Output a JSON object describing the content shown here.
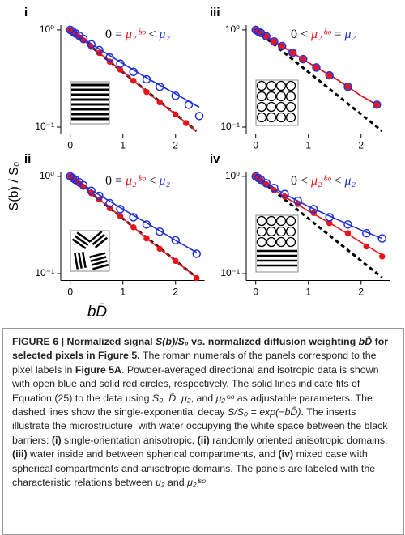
{
  "chart_data": [
    {
      "type": "scatter",
      "panel_label": "i",
      "log_y": true,
      "annotation": [
        {
          "text": "0 = ",
          "color": "#000000"
        },
        {
          "text": "μ₂ⁱˢᵒ",
          "color": "#e8141b"
        },
        {
          "text": " < ",
          "color": "#000000"
        },
        {
          "text": "μ₂",
          "color": "#1f2fd6"
        }
      ],
      "xlim": [
        -0.18,
        2.55
      ],
      "ylim": [
        0.085,
        1.12
      ],
      "xticks": [
        0,
        1,
        2
      ],
      "yticks": [
        {
          "value": 1,
          "label": "10⁰"
        },
        {
          "value": 0.1,
          "label": "10⁻¹"
        }
      ],
      "series": [
        {
          "style": "open-circle",
          "color": "#1f2fd6",
          "x": [
            0,
            0.05,
            0.1,
            0.17,
            0.25,
            0.4,
            0.55,
            0.75,
            0.95,
            1.2,
            1.45,
            1.7,
            2.0,
            2.25,
            2.45
          ],
          "values": [
            1.0,
            0.96,
            0.92,
            0.87,
            0.81,
            0.71,
            0.62,
            0.52,
            0.45,
            0.37,
            0.31,
            0.26,
            0.21,
            0.17,
            0.13
          ]
        },
        {
          "style": "filled-circle",
          "color": "#e8141b",
          "x": [
            0,
            0.05,
            0.1,
            0.17,
            0.25,
            0.4,
            0.55,
            0.75,
            0.95,
            1.2,
            1.45,
            1.7,
            2.0,
            2.2
          ],
          "values": [
            1.0,
            0.95,
            0.9,
            0.84,
            0.78,
            0.67,
            0.58,
            0.47,
            0.39,
            0.3,
            0.23,
            0.18,
            0.135,
            0.11
          ]
        },
        {
          "style": "line",
          "color": "#1f2fd6",
          "x": [
            0,
            0.5,
            1,
            1.5,
            2,
            2.45
          ],
          "values": [
            1,
            0.66,
            0.45,
            0.31,
            0.22,
            0.16
          ]
        },
        {
          "style": "line",
          "color": "#e8141b",
          "x": [
            0,
            0.5,
            1,
            1.5,
            2,
            2.4
          ],
          "values": [
            1,
            0.61,
            0.37,
            0.22,
            0.135,
            0.091
          ]
        },
        {
          "style": "dashed",
          "color": "#000000",
          "x": [
            0,
            2.4
          ],
          "values": [
            1,
            0.091
          ]
        }
      ]
    },
    {
      "type": "scatter",
      "panel_label": "ii",
      "log_y": true,
      "annotation": [
        {
          "text": "0 = ",
          "color": "#000000"
        },
        {
          "text": "μ₂ⁱˢᵒ",
          "color": "#e8141b"
        },
        {
          "text": " < ",
          "color": "#000000"
        },
        {
          "text": "μ₂",
          "color": "#1f2fd6"
        }
      ],
      "xlim": [
        -0.18,
        2.55
      ],
      "ylim": [
        0.085,
        1.12
      ],
      "xticks": [
        0,
        1,
        2
      ],
      "yticks": [
        {
          "value": 1,
          "label": "10⁰"
        },
        {
          "value": 0.1,
          "label": "10⁻¹"
        }
      ],
      "series": [
        {
          "style": "open-circle",
          "color": "#1f2fd6",
          "x": [
            0,
            0.05,
            0.1,
            0.17,
            0.25,
            0.4,
            0.55,
            0.75,
            0.95,
            1.2,
            1.45,
            1.7,
            2.0,
            2.4
          ],
          "values": [
            1.0,
            0.96,
            0.92,
            0.87,
            0.81,
            0.71,
            0.63,
            0.53,
            0.46,
            0.38,
            0.32,
            0.27,
            0.22,
            0.16
          ]
        },
        {
          "style": "filled-circle",
          "color": "#e8141b",
          "x": [
            0,
            0.05,
            0.1,
            0.17,
            0.25,
            0.4,
            0.55,
            0.75,
            0.95,
            1.2,
            1.45,
            1.7,
            2.0,
            2.4
          ],
          "values": [
            1.0,
            0.95,
            0.9,
            0.84,
            0.78,
            0.67,
            0.58,
            0.47,
            0.39,
            0.3,
            0.23,
            0.18,
            0.135,
            0.09
          ]
        },
        {
          "style": "line",
          "color": "#1f2fd6",
          "x": [
            0,
            0.5,
            1,
            1.5,
            2,
            2.4
          ],
          "values": [
            1,
            0.67,
            0.46,
            0.32,
            0.22,
            0.165
          ]
        },
        {
          "style": "line",
          "color": "#e8141b",
          "x": [
            0,
            0.5,
            1,
            1.5,
            2,
            2.4
          ],
          "values": [
            1,
            0.61,
            0.37,
            0.22,
            0.135,
            0.091
          ]
        },
        {
          "style": "dashed",
          "color": "#000000",
          "x": [
            0,
            2.4
          ],
          "values": [
            1,
            0.091
          ]
        }
      ]
    },
    {
      "type": "scatter",
      "panel_label": "iii",
      "log_y": true,
      "annotation": [
        {
          "text": "0 < ",
          "color": "#000000"
        },
        {
          "text": "μ₂ⁱˢᵒ",
          "color": "#e8141b"
        },
        {
          "text": " = ",
          "color": "#000000"
        },
        {
          "text": "μ₂",
          "color": "#1f2fd6"
        }
      ],
      "xlim": [
        -0.18,
        2.55
      ],
      "ylim": [
        0.085,
        1.12
      ],
      "xticks": [
        0,
        1,
        2
      ],
      "yticks": [
        {
          "value": 1,
          "label": "10⁰"
        },
        {
          "value": 0.1,
          "label": "10⁻¹"
        }
      ],
      "series": [
        {
          "style": "open-circle",
          "color": "#1f2fd6",
          "x": [
            0,
            0.05,
            0.1,
            0.2,
            0.35,
            0.5,
            0.7,
            0.9,
            1.15,
            1.4,
            1.75,
            2.3
          ],
          "values": [
            1,
            0.96,
            0.93,
            0.86,
            0.76,
            0.68,
            0.58,
            0.5,
            0.41,
            0.34,
            0.26,
            0.17
          ]
        },
        {
          "style": "filled-circle",
          "color": "#e8141b",
          "x": [
            0,
            0.05,
            0.1,
            0.2,
            0.35,
            0.5,
            0.7,
            0.9,
            1.15,
            1.4,
            1.75,
            2.3
          ],
          "values": [
            1,
            0.96,
            0.93,
            0.86,
            0.76,
            0.68,
            0.58,
            0.5,
            0.41,
            0.34,
            0.26,
            0.17
          ]
        },
        {
          "style": "line",
          "color": "#1f2fd6",
          "x": [
            0,
            0.5,
            1,
            1.5,
            2,
            2.3
          ],
          "values": [
            1,
            0.68,
            0.46,
            0.32,
            0.21,
            0.17
          ]
        },
        {
          "style": "line",
          "color": "#e8141b",
          "x": [
            0,
            0.5,
            1,
            1.5,
            2,
            2.3
          ],
          "values": [
            1,
            0.68,
            0.46,
            0.32,
            0.21,
            0.17
          ]
        },
        {
          "style": "dashed",
          "color": "#000000",
          "x": [
            0,
            2.4
          ],
          "values": [
            1,
            0.091
          ]
        }
      ]
    },
    {
      "type": "scatter",
      "panel_label": "iv",
      "log_y": true,
      "annotation": [
        {
          "text": "0 < ",
          "color": "#000000"
        },
        {
          "text": "μ₂ⁱˢᵒ",
          "color": "#e8141b"
        },
        {
          "text": " < ",
          "color": "#000000"
        },
        {
          "text": "μ₂",
          "color": "#1f2fd6"
        }
      ],
      "xlim": [
        -0.18,
        2.55
      ],
      "ylim": [
        0.085,
        1.12
      ],
      "xticks": [
        0,
        1,
        2
      ],
      "yticks": [
        {
          "value": 1,
          "label": "10⁰"
        },
        {
          "value": 0.1,
          "label": "10⁻¹"
        }
      ],
      "series": [
        {
          "style": "open-circle",
          "color": "#1f2fd6",
          "x": [
            0,
            0.05,
            0.1,
            0.2,
            0.35,
            0.55,
            0.8,
            1.1,
            1.4,
            1.75,
            2.1,
            2.4
          ],
          "values": [
            1,
            0.96,
            0.92,
            0.85,
            0.76,
            0.66,
            0.56,
            0.46,
            0.38,
            0.32,
            0.26,
            0.23
          ]
        },
        {
          "style": "filled-circle",
          "color": "#e8141b",
          "x": [
            0,
            0.05,
            0.1,
            0.2,
            0.35,
            0.55,
            0.8,
            1.1,
            1.4,
            1.75,
            2.1,
            2.4
          ],
          "values": [
            1,
            0.95,
            0.91,
            0.83,
            0.72,
            0.62,
            0.52,
            0.42,
            0.33,
            0.26,
            0.19,
            0.15
          ]
        },
        {
          "style": "line",
          "color": "#1f2fd6",
          "x": [
            0,
            0.5,
            1,
            1.5,
            2,
            2.4
          ],
          "values": [
            1,
            0.68,
            0.49,
            0.37,
            0.28,
            0.23
          ]
        },
        {
          "style": "line",
          "color": "#e8141b",
          "x": [
            0,
            0.5,
            1,
            1.5,
            2,
            2.4
          ],
          "values": [
            1,
            0.64,
            0.44,
            0.31,
            0.21,
            0.155
          ]
        },
        {
          "style": "dashed",
          "color": "#000000",
          "x": [
            0,
            2.4
          ],
          "values": [
            1,
            0.091
          ]
        }
      ]
    }
  ],
  "figure": {
    "ylabel": "S(b) / S₀",
    "xlabel": "bD̄"
  },
  "caption": {
    "title": [
      {
        "text": "FIGURE 6 | Normalized signal "
      },
      {
        "text": "S(b)/S₀",
        "i": true
      },
      {
        "text": " vs. normalized diffusion weighting "
      },
      {
        "text": "bD̄",
        "i": true
      },
      {
        "text": " for selected pixels in Figure 5."
      }
    ],
    "body": [
      {
        "text": "The roman numerals of the panels correspond to the pixel labels in "
      },
      {
        "text": "Figure 5A",
        "b": true
      },
      {
        "text": ". Powder-averaged directional and isotropic data is shown with open blue and solid red circles, respectively. The solid lines indicate fits of Equation (25) to the data using "
      },
      {
        "text": "S₀, D̄, μ₂",
        "i": true
      },
      {
        "text": ", and "
      },
      {
        "text": "μ₂ⁱˢᵒ",
        "i": true
      },
      {
        "text": " as adjustable parameters. The dashed lines show the single-exponential decay "
      },
      {
        "text": "S/S₀ = exp(−bD̄)",
        "i": true
      },
      {
        "text": ". The inserts illustrate the microstructure, with water occupying the white space between the black barriers: "
      },
      {
        "text": "(i)",
        "b": true
      },
      {
        "text": " single-orientation anisotropic, "
      },
      {
        "text": "(ii)",
        "b": true
      },
      {
        "text": " randomly oriented anisotropic domains, "
      },
      {
        "text": "(iii)",
        "b": true
      },
      {
        "text": " water inside and between spherical compartments, and "
      },
      {
        "text": "(iv)",
        "b": true
      },
      {
        "text": " mixed case with spherical compartments and anisotropic domains. The panels are labeled with the characteristic relations between "
      },
      {
        "text": "μ₂",
        "i": true
      },
      {
        "text": " and "
      },
      {
        "text": "μ₂ⁱˢᵒ",
        "i": true
      },
      {
        "text": "."
      }
    ]
  }
}
